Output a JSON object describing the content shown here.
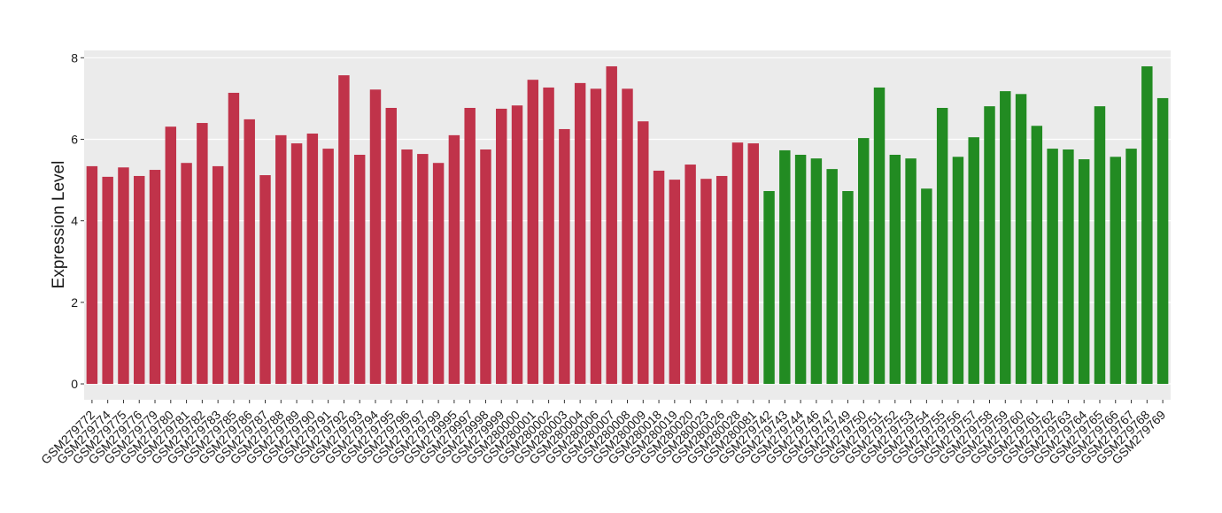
{
  "chart_data": {
    "type": "bar",
    "y_label": "Expression Level",
    "categories": [
      "GSM279772",
      "GSM279774",
      "GSM279775",
      "GSM279776",
      "GSM279779",
      "GSM279780",
      "GSM279781",
      "GSM279782",
      "GSM279783",
      "GSM279785",
      "GSM279786",
      "GSM279787",
      "GSM279788",
      "GSM279789",
      "GSM279790",
      "GSM279791",
      "GSM279792",
      "GSM279793",
      "GSM279794",
      "GSM279795",
      "GSM279796",
      "GSM279797",
      "GSM279799",
      "GSM279995",
      "GSM279997",
      "GSM279998",
      "GSM279999",
      "GSM280000",
      "GSM280001",
      "GSM280002",
      "GSM280003",
      "GSM280004",
      "GSM280006",
      "GSM280007",
      "GSM280008",
      "GSM280009",
      "GSM280018",
      "GSM280019",
      "GSM280020",
      "GSM280023",
      "GSM280026",
      "GSM280028",
      "GSM280081",
      "GSM279742",
      "GSM279743",
      "GSM279744",
      "GSM279746",
      "GSM279747",
      "GSM279749",
      "GSM279750",
      "GSM279751",
      "GSM279752",
      "GSM279753",
      "GSM279754",
      "GSM279755",
      "GSM279756",
      "GSM279757",
      "GSM279758",
      "GSM279759",
      "GSM279760",
      "GSM279761",
      "GSM279762",
      "GSM279763",
      "GSM279764",
      "GSM279765",
      "GSM279766",
      "GSM279767",
      "GSM279768",
      "GSM279769"
    ],
    "values": [
      5.34,
      5.08,
      5.31,
      5.1,
      5.25,
      6.31,
      5.42,
      6.4,
      5.34,
      7.14,
      6.49,
      5.12,
      6.1,
      5.9,
      6.14,
      5.77,
      7.57,
      5.62,
      7.22,
      6.77,
      5.75,
      5.64,
      5.42,
      6.1,
      6.77,
      5.75,
      6.75,
      6.83,
      7.46,
      7.27,
      6.25,
      7.38,
      7.24,
      7.79,
      7.24,
      6.44,
      5.23,
      5.01,
      5.38,
      5.03,
      5.1,
      5.92,
      5.9,
      4.73,
      5.73,
      5.62,
      5.53,
      5.27,
      4.73,
      6.03,
      7.27,
      5.62,
      5.53,
      4.79,
      6.77,
      5.57,
      6.05,
      6.81,
      7.18,
      7.11,
      6.33,
      5.77,
      5.75,
      5.51,
      6.81,
      5.57,
      5.77,
      7.79,
      7.01
    ],
    "colors": [
      "#c0334a",
      "#c0334a",
      "#c0334a",
      "#c0334a",
      "#c0334a",
      "#c0334a",
      "#c0334a",
      "#c0334a",
      "#c0334a",
      "#c0334a",
      "#c0334a",
      "#c0334a",
      "#c0334a",
      "#c0334a",
      "#c0334a",
      "#c0334a",
      "#c0334a",
      "#c0334a",
      "#c0334a",
      "#c0334a",
      "#c0334a",
      "#c0334a",
      "#c0334a",
      "#c0334a",
      "#c0334a",
      "#c0334a",
      "#c0334a",
      "#c0334a",
      "#c0334a",
      "#c0334a",
      "#c0334a",
      "#c0334a",
      "#c0334a",
      "#c0334a",
      "#c0334a",
      "#c0334a",
      "#c0334a",
      "#c0334a",
      "#c0334a",
      "#c0334a",
      "#c0334a",
      "#c0334a",
      "#c0334a",
      "#228b22",
      "#228b22",
      "#228b22",
      "#228b22",
      "#228b22",
      "#228b22",
      "#228b22",
      "#228b22",
      "#228b22",
      "#228b22",
      "#228b22",
      "#228b22",
      "#228b22",
      "#228b22",
      "#228b22",
      "#228b22",
      "#228b22",
      "#228b22",
      "#228b22",
      "#228b22",
      "#228b22",
      "#228b22",
      "#228b22",
      "#228b22",
      "#228b22",
      "#228b22"
    ],
    "ylim": [
      -0.39,
      8.18
    ],
    "yticks": [
      0,
      2,
      4,
      6,
      8
    ],
    "grid": true
  }
}
